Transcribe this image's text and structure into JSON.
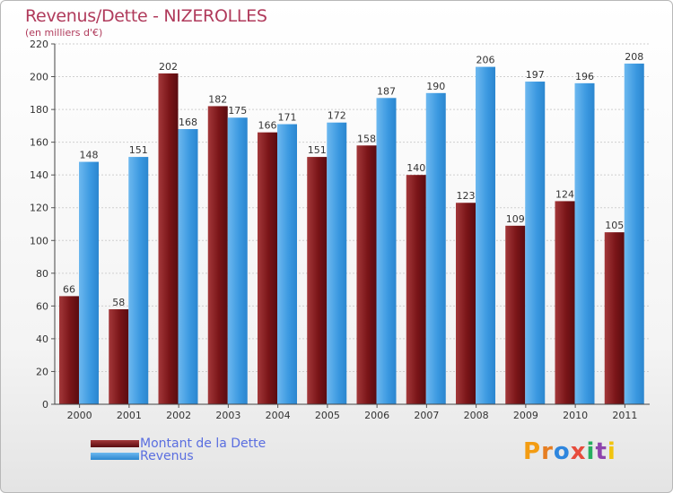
{
  "title": "Revenus/Dette - NIZEROLLES",
  "subtitle": "(en milliers d'€)",
  "logo_text": "Proxiti",
  "colors": {
    "debt": "#8b1c1f",
    "revenue": "#4aa3e6",
    "title": "#b03a5b",
    "legend_text": "#5a6ee0"
  },
  "chart_data": {
    "type": "bar",
    "title": "Revenus/Dette - NIZEROLLES",
    "subtitle": "(en milliers d'€)",
    "categories": [
      "2000",
      "2001",
      "2002",
      "2003",
      "2004",
      "2005",
      "2006",
      "2007",
      "2008",
      "2009",
      "2010",
      "2011"
    ],
    "series": [
      {
        "name": "Montant de la Dette",
        "values": [
          66,
          58,
          202,
          182,
          166,
          151,
          158,
          140,
          123,
          109,
          124,
          105
        ]
      },
      {
        "name": "Revenus",
        "values": [
          148,
          151,
          168,
          175,
          171,
          172,
          187,
          190,
          206,
          197,
          196,
          208
        ]
      }
    ],
    "ylim": [
      0,
      220
    ],
    "yticks": [
      0,
      20,
      40,
      60,
      80,
      100,
      120,
      140,
      160,
      180,
      200,
      220
    ],
    "grid": true,
    "legend": "bottom-left"
  }
}
